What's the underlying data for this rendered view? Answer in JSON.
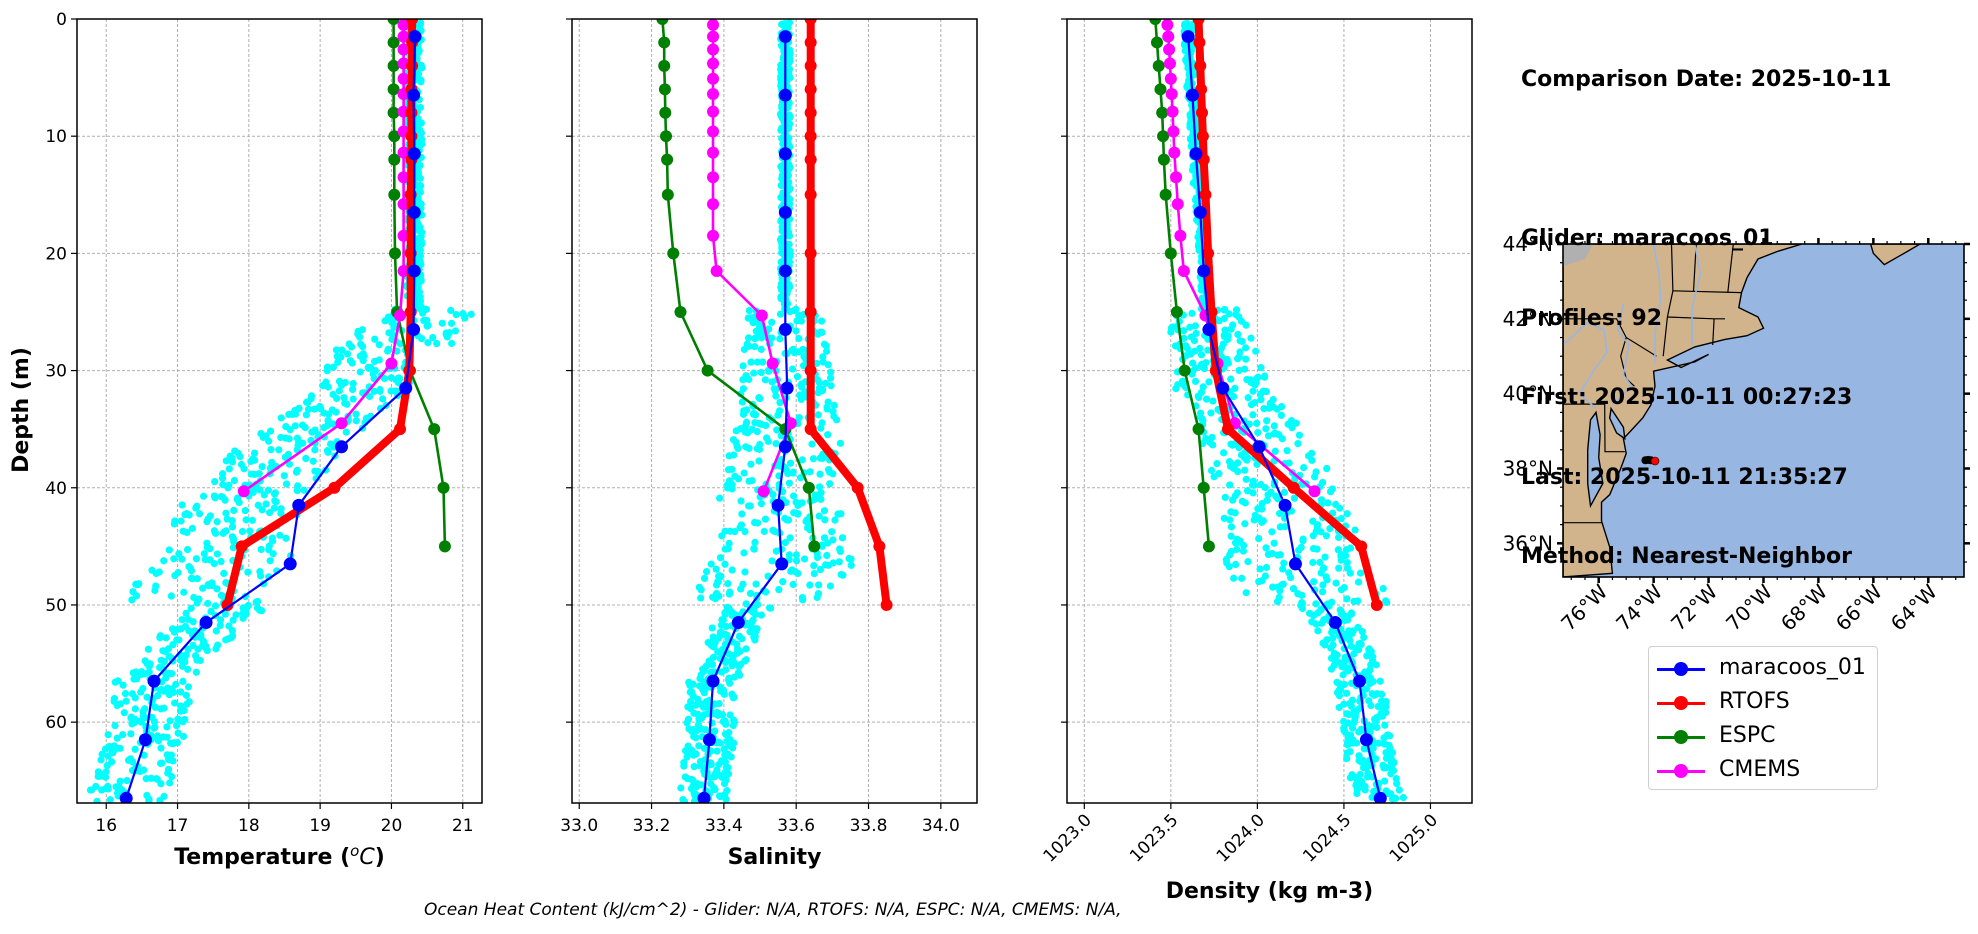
{
  "info": {
    "comparison_date": "Comparison Date: 2025-10-11",
    "glider": "Glider: maracoos_01",
    "profiles": "Profiles: 92",
    "first": "First: 2025-10-11 00:27:23",
    "last": "Last: 2025-10-11 21:35:27",
    "method": "Method: Nearest-Neighbor"
  },
  "footer": "Ocean Heat Content (kJ/cm^2) - Glider: N/A,  RTOFS: N/A,  ESPC: N/A,  CMEMS: N/A,",
  "legend": [
    {
      "label": "maracoos_01",
      "color": "#0000ff"
    },
    {
      "label": "RTOFS",
      "color": "#ff0000"
    },
    {
      "label": "ESPC",
      "color": "#008000"
    },
    {
      "label": "CMEMS",
      "color": "#ff00ff"
    }
  ],
  "colors": {
    "glider_raw": "#00ffff",
    "land": "#d2b48c",
    "ocean": "#97b6e1",
    "river": "#97b6e1",
    "unknown_land": "#b0b0b0",
    "grid": "#b0b0b0"
  },
  "chart_data": [
    {
      "type": "line",
      "title": "",
      "xlabel": "Temperature (°C)",
      "ylabel": "Depth (m)",
      "xlim": [
        15.59,
        21.27
      ],
      "ylim": [
        66.9,
        0
      ],
      "xticks": [
        16,
        17,
        18,
        19,
        20,
        21
      ],
      "xtick_labels": [
        "16",
        "17",
        "18",
        "19",
        "20",
        "21"
      ],
      "yticks": [
        0,
        10,
        20,
        30,
        40,
        50,
        60
      ],
      "ytick_labels": [
        "0",
        "10",
        "20",
        "30",
        "40",
        "50",
        "60"
      ],
      "grid": true,
      "series": [
        {
          "name": "maracoos_01",
          "depth": [
            1.5,
            6.5,
            11.5,
            16.5,
            21.5,
            26.5,
            31.5,
            36.5,
            41.5,
            46.5,
            51.5,
            56.5,
            61.5,
            66.5
          ],
          "values": [
            20.33,
            20.31,
            20.32,
            20.32,
            20.32,
            20.31,
            20.2,
            19.3,
            18.7,
            18.58,
            17.4,
            16.67,
            16.55,
            16.28
          ]
        },
        {
          "name": "RTOFS",
          "depth": [
            0,
            2,
            4,
            6,
            8,
            10,
            12,
            15,
            20,
            25,
            30,
            35,
            40,
            45,
            50
          ],
          "values": [
            20.29,
            20.29,
            20.29,
            20.28,
            20.28,
            20.28,
            20.28,
            20.27,
            20.27,
            20.27,
            20.25,
            20.12,
            19.2,
            17.9,
            17.7
          ]
        },
        {
          "name": "ESPC",
          "depth": [
            0,
            2,
            4,
            6,
            8,
            10,
            12,
            15,
            20,
            25,
            30,
            35,
            40,
            45
          ],
          "values": [
            20.03,
            20.03,
            20.03,
            20.03,
            20.03,
            20.04,
            20.04,
            20.04,
            20.05,
            20.08,
            20.26,
            20.6,
            20.73,
            20.75
          ]
        },
        {
          "name": "CMEMS",
          "depth": [
            0.5,
            1.5,
            2.6,
            3.8,
            5.1,
            6.4,
            7.9,
            9.6,
            11.4,
            13.5,
            15.8,
            18.5,
            21.5,
            25.3,
            29.4,
            34.5,
            40.3
          ],
          "values": [
            20.17,
            20.17,
            20.17,
            20.17,
            20.17,
            20.17,
            20.17,
            20.17,
            20.17,
            20.17,
            20.17,
            20.17,
            20.17,
            20.12,
            20.0,
            19.3,
            17.93
          ]
        }
      ]
    },
    {
      "type": "line",
      "title": "",
      "xlabel": "Salinity",
      "ylabel": "",
      "xlim": [
        32.98,
        34.1
      ],
      "ylim": [
        66.9,
        0
      ],
      "xticks": [
        33.0,
        33.2,
        33.4,
        33.6,
        33.8,
        34.0
      ],
      "xtick_labels": [
        "33.0",
        "33.2",
        "33.4",
        "33.6",
        "33.8",
        "34.0"
      ],
      "yticks": [
        0,
        10,
        20,
        30,
        40,
        50,
        60
      ],
      "grid": true,
      "series": [
        {
          "name": "maracoos_01",
          "depth": [
            1.5,
            6.5,
            11.5,
            16.5,
            21.5,
            26.5,
            31.5,
            36.5,
            41.5,
            46.5,
            51.5,
            56.5,
            61.5,
            66.5
          ],
          "values": [
            33.57,
            33.57,
            33.57,
            33.57,
            33.57,
            33.57,
            33.575,
            33.57,
            33.55,
            33.56,
            33.44,
            33.37,
            33.36,
            33.345
          ]
        },
        {
          "name": "RTOFS",
          "depth": [
            0,
            2,
            4,
            6,
            8,
            10,
            12,
            15,
            20,
            25,
            30,
            35,
            40,
            45,
            50
          ],
          "values": [
            33.64,
            33.64,
            33.64,
            33.64,
            33.64,
            33.64,
            33.64,
            33.64,
            33.64,
            33.64,
            33.64,
            33.64,
            33.77,
            33.83,
            33.85
          ]
        },
        {
          "name": "ESPC",
          "depth": [
            0,
            2,
            4,
            6,
            8,
            10,
            12,
            15,
            20,
            25,
            30,
            35,
            40,
            45
          ],
          "values": [
            33.23,
            33.235,
            33.235,
            33.237,
            33.238,
            33.24,
            33.243,
            33.245,
            33.26,
            33.28,
            33.355,
            33.57,
            33.635,
            33.65
          ]
        },
        {
          "name": "CMEMS",
          "depth": [
            0.5,
            1.5,
            2.6,
            3.8,
            5.1,
            6.4,
            7.9,
            9.6,
            11.4,
            13.5,
            15.8,
            18.5,
            21.5,
            25.3,
            29.4,
            34.5,
            40.3
          ],
          "values": [
            33.37,
            33.37,
            33.37,
            33.37,
            33.37,
            33.37,
            33.37,
            33.37,
            33.37,
            33.37,
            33.37,
            33.37,
            33.38,
            33.505,
            33.535,
            33.585,
            33.51
          ]
        }
      ]
    },
    {
      "type": "line",
      "title": "",
      "xlabel": "Density (kg m-3)",
      "ylabel": "",
      "xlim": [
        1022.9,
        1025.24
      ],
      "ylim": [
        66.9,
        0
      ],
      "xticks": [
        1023.0,
        1023.5,
        1024.0,
        1024.5,
        1025.0
      ],
      "xtick_labels": [
        "1023.0",
        "1023.5",
        "1024.0",
        "1024.5",
        "1025.0"
      ],
      "yticks": [
        0,
        10,
        20,
        30,
        40,
        50,
        60
      ],
      "grid": true,
      "series": [
        {
          "name": "maracoos_01",
          "depth": [
            1.5,
            6.5,
            11.5,
            16.5,
            21.5,
            26.5,
            31.5,
            36.5,
            41.5,
            46.5,
            51.5,
            56.5,
            61.5,
            66.5
          ],
          "values": [
            1023.6,
            1023.625,
            1023.645,
            1023.67,
            1023.69,
            1023.72,
            1023.8,
            1024.01,
            1024.16,
            1024.22,
            1024.45,
            1024.59,
            1024.63,
            1024.71
          ]
        },
        {
          "name": "RTOFS",
          "depth": [
            0,
            2,
            4,
            6,
            8,
            10,
            12,
            15,
            20,
            25,
            30,
            35,
            40,
            45,
            50
          ],
          "values": [
            1023.66,
            1023.665,
            1023.67,
            1023.675,
            1023.68,
            1023.685,
            1023.69,
            1023.7,
            1023.715,
            1023.735,
            1023.76,
            1023.83,
            1024.21,
            1024.6,
            1024.69
          ]
        },
        {
          "name": "ESPC",
          "depth": [
            0,
            2,
            4,
            6,
            8,
            10,
            12,
            15,
            20,
            25,
            30,
            35,
            40,
            45
          ],
          "values": [
            1023.41,
            1023.42,
            1023.43,
            1023.44,
            1023.45,
            1023.455,
            1023.46,
            1023.47,
            1023.5,
            1023.535,
            1023.58,
            1023.66,
            1023.69,
            1023.72
          ]
        },
        {
          "name": "CMEMS",
          "depth": [
            0.5,
            1.5,
            2.6,
            3.8,
            5.1,
            6.4,
            7.9,
            9.6,
            11.4,
            13.5,
            15.8,
            18.5,
            21.5,
            25.3,
            29.4,
            34.5,
            40.3
          ],
          "values": [
            1023.48,
            1023.485,
            1023.49,
            1023.495,
            1023.5,
            1023.505,
            1023.51,
            1023.515,
            1023.52,
            1023.53,
            1023.54,
            1023.555,
            1023.575,
            1023.7,
            1023.77,
            1023.87,
            1024.33
          ]
        }
      ]
    },
    {
      "type": "map",
      "title": "",
      "lon_range": [
        -77.3,
        -62.7
      ],
      "lat_range": [
        35.1,
        44.0
      ],
      "xticks": [
        -76,
        -74,
        -72,
        -70,
        -68,
        -66,
        -64
      ],
      "xtick_labels": [
        "76°W",
        "74°W",
        "72°W",
        "70°W",
        "68°W",
        "66°W",
        "64°W"
      ],
      "yticks": [
        36,
        38,
        40,
        42,
        44
      ],
      "ytick_labels": [
        "36°N",
        "38°N",
        "40°N",
        "42°N",
        "44°N"
      ],
      "glider_track": {
        "lon": [
          -74.3,
          -74.2,
          -74.1
        ],
        "lat": [
          38.22,
          38.23,
          38.22
        ]
      },
      "glider_last_position": {
        "lon": -73.95,
        "lat": 38.2
      }
    }
  ]
}
